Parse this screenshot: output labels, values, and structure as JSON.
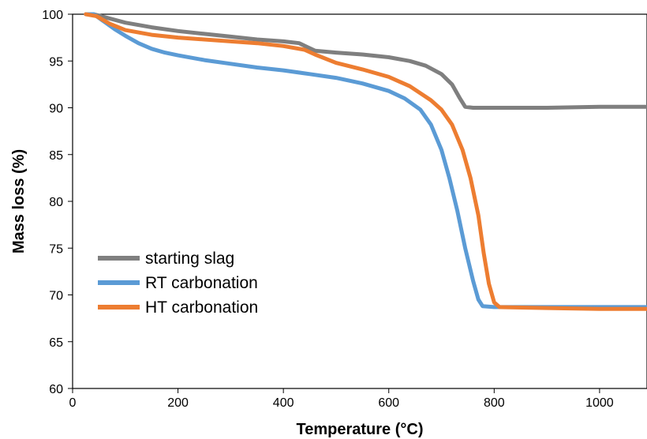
{
  "chart_data": {
    "type": "line",
    "title": "",
    "xlabel": "Temperature (°C)",
    "ylabel": "Mass loss (%)",
    "xlim": [
      0,
      1090
    ],
    "ylim": [
      60,
      100
    ],
    "x_ticks": [
      "0",
      "200",
      "400",
      "600",
      "800",
      "1000"
    ],
    "y_ticks": [
      "60",
      "65",
      "70",
      "75",
      "80",
      "85",
      "90",
      "95",
      "100"
    ],
    "grid": false,
    "legend_position": "bottom-left",
    "series": [
      {
        "name": "starting slag",
        "color": "#7f7f7f",
        "points": [
          [
            25,
            100
          ],
          [
            40,
            100
          ],
          [
            60,
            99.7
          ],
          [
            100,
            99.1
          ],
          [
            150,
            98.6
          ],
          [
            200,
            98.2
          ],
          [
            250,
            97.9
          ],
          [
            300,
            97.6
          ],
          [
            350,
            97.3
          ],
          [
            400,
            97.1
          ],
          [
            430,
            96.9
          ],
          [
            445,
            96.5
          ],
          [
            460,
            96.1
          ],
          [
            500,
            95.9
          ],
          [
            550,
            95.7
          ],
          [
            600,
            95.4
          ],
          [
            640,
            95
          ],
          [
            670,
            94.5
          ],
          [
            700,
            93.6
          ],
          [
            720,
            92.5
          ],
          [
            735,
            91
          ],
          [
            745,
            90.1
          ],
          [
            760,
            90
          ],
          [
            800,
            90
          ],
          [
            900,
            90
          ],
          [
            1000,
            90.1
          ],
          [
            1090,
            90.1
          ]
        ]
      },
      {
        "name": "RT carbonation",
        "color": "#5b9bd5",
        "points": [
          [
            25,
            100
          ],
          [
            40,
            100
          ],
          [
            60,
            99.2
          ],
          [
            80,
            98.4
          ],
          [
            100,
            97.7
          ],
          [
            125,
            96.9
          ],
          [
            150,
            96.3
          ],
          [
            175,
            95.9
          ],
          [
            200,
            95.6
          ],
          [
            250,
            95.1
          ],
          [
            300,
            94.7
          ],
          [
            350,
            94.3
          ],
          [
            400,
            94
          ],
          [
            450,
            93.6
          ],
          [
            500,
            93.2
          ],
          [
            550,
            92.6
          ],
          [
            600,
            91.8
          ],
          [
            630,
            91
          ],
          [
            660,
            89.8
          ],
          [
            680,
            88.2
          ],
          [
            700,
            85.5
          ],
          [
            715,
            82.5
          ],
          [
            730,
            79
          ],
          [
            745,
            75
          ],
          [
            760,
            71.5
          ],
          [
            770,
            69.5
          ],
          [
            778,
            68.8
          ],
          [
            800,
            68.7
          ],
          [
            900,
            68.7
          ],
          [
            1000,
            68.7
          ],
          [
            1090,
            68.7
          ]
        ]
      },
      {
        "name": "HT carbonation",
        "color": "#ed7d31",
        "points": [
          [
            25,
            100
          ],
          [
            45,
            99.8
          ],
          [
            70,
            99
          ],
          [
            100,
            98.3
          ],
          [
            150,
            97.8
          ],
          [
            200,
            97.5
          ],
          [
            250,
            97.3
          ],
          [
            300,
            97.1
          ],
          [
            350,
            96.9
          ],
          [
            400,
            96.6
          ],
          [
            440,
            96.2
          ],
          [
            460,
            95.7
          ],
          [
            500,
            94.8
          ],
          [
            550,
            94.1
          ],
          [
            600,
            93.3
          ],
          [
            640,
            92.3
          ],
          [
            680,
            90.8
          ],
          [
            700,
            89.8
          ],
          [
            720,
            88.2
          ],
          [
            740,
            85.5
          ],
          [
            755,
            82.5
          ],
          [
            770,
            78.5
          ],
          [
            780,
            74.5
          ],
          [
            790,
            71.2
          ],
          [
            800,
            69.2
          ],
          [
            810,
            68.7
          ],
          [
            900,
            68.6
          ],
          [
            1000,
            68.5
          ],
          [
            1090,
            68.5
          ]
        ]
      }
    ]
  }
}
